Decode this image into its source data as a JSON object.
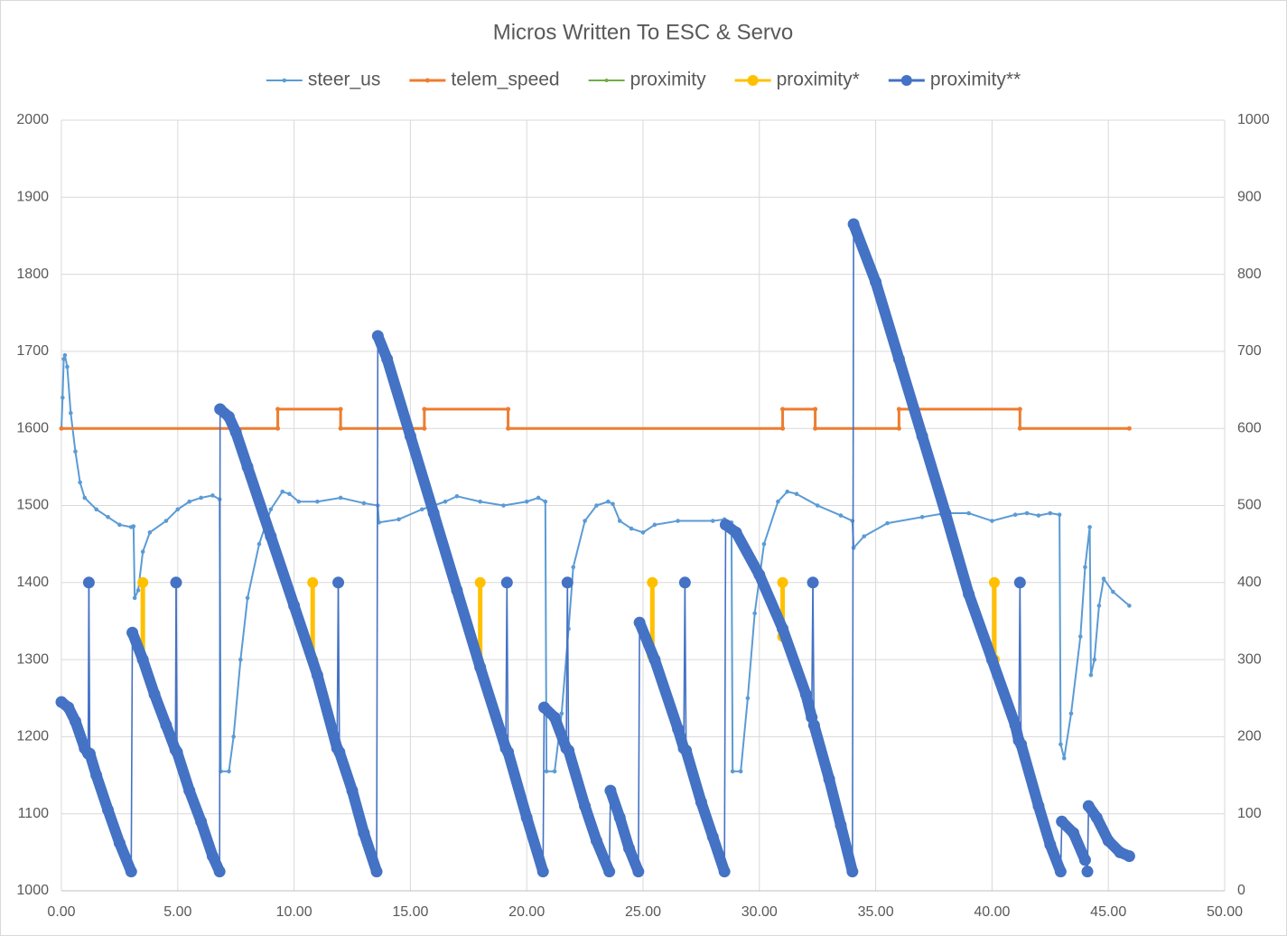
{
  "chart_data": {
    "type": "line",
    "title": "Micros Written To ESC & Servo",
    "xlim": [
      0,
      50
    ],
    "xticks": [
      {
        "value": 0,
        "label": "0.00"
      },
      {
        "value": 5,
        "label": "5.00"
      },
      {
        "value": 10,
        "label": "10.00"
      },
      {
        "value": 15,
        "label": "15.00"
      },
      {
        "value": 20,
        "label": "20.00"
      },
      {
        "value": 25,
        "label": "25.00"
      },
      {
        "value": 30,
        "label": "30.00"
      },
      {
        "value": 35,
        "label": "35.00"
      },
      {
        "value": 40,
        "label": "40.00"
      },
      {
        "value": 45,
        "label": "45.00"
      },
      {
        "value": 50,
        "label": "50.00"
      }
    ],
    "ylim": [
      1000,
      2000
    ],
    "yticks": [
      1000,
      1100,
      1200,
      1300,
      1400,
      1500,
      1600,
      1700,
      1800,
      1900,
      2000
    ],
    "y2lim": [
      0,
      1000
    ],
    "y2ticks": [
      0,
      100,
      200,
      300,
      400,
      500,
      600,
      700,
      800,
      900,
      1000
    ],
    "grid": true,
    "legend": "top",
    "series": [
      {
        "name": "steer_us",
        "color": "#5b9bd5",
        "x": [
          0,
          0.05,
          0.1,
          0.15,
          0.25,
          0.4,
          0.6,
          0.8,
          1.0,
          1.5,
          2.0,
          2.5,
          3.0,
          3.1,
          3.15,
          3.3,
          3.5,
          3.8,
          4.5,
          5.0,
          5.5,
          6.0,
          6.5,
          6.8,
          6.85,
          7.2,
          7.4,
          7.7,
          8.0,
          8.5,
          9.0,
          9.5,
          9.8,
          10.2,
          11.0,
          12.0,
          13.0,
          13.6,
          13.65,
          14.5,
          15.5,
          16.5,
          17.0,
          18.0,
          19.0,
          20.0,
          20.5,
          20.8,
          20.85,
          21.2,
          21.5,
          21.8,
          22.0,
          22.5,
          23.0,
          23.5,
          23.7,
          24.0,
          24.5,
          25.0,
          25.5,
          26.5,
          28.0,
          28.5,
          28.8,
          28.85,
          29.2,
          29.5,
          29.8,
          30.2,
          30.8,
          31.2,
          31.6,
          32.5,
          33.5,
          34.0,
          34.05,
          34.5,
          35.5,
          37.0,
          38.0,
          39.0,
          40.0,
          41.0,
          41.5,
          42.0,
          42.5,
          42.9,
          42.95,
          43.1,
          43.4,
          43.8,
          44.0,
          44.2,
          44.25,
          44.4,
          44.6,
          44.8,
          45.2,
          45.9
        ],
        "values": [
          1600,
          1640,
          1690,
          1695,
          1680,
          1620,
          1570,
          1530,
          1510,
          1495,
          1485,
          1475,
          1472,
          1473,
          1380,
          1390,
          1440,
          1465,
          1480,
          1495,
          1505,
          1510,
          1513,
          1508,
          1155,
          1155,
          1200,
          1300,
          1380,
          1450,
          1495,
          1518,
          1515,
          1505,
          1505,
          1510,
          1503,
          1500,
          1478,
          1482,
          1495,
          1505,
          1512,
          1505,
          1500,
          1505,
          1510,
          1505,
          1155,
          1155,
          1230,
          1340,
          1420,
          1480,
          1500,
          1505,
          1502,
          1480,
          1470,
          1465,
          1475,
          1480,
          1480,
          1482,
          1478,
          1155,
          1155,
          1250,
          1360,
          1450,
          1505,
          1518,
          1515,
          1500,
          1487,
          1480,
          1445,
          1460,
          1477,
          1485,
          1490,
          1490,
          1480,
          1488,
          1490,
          1487,
          1490,
          1488,
          1190,
          1172,
          1230,
          1330,
          1420,
          1472,
          1280,
          1300,
          1370,
          1405,
          1388,
          1370
        ]
      },
      {
        "name": "telem_speed",
        "color": "#ed7d31",
        "x": [
          0,
          9.3,
          9.3,
          12.0,
          12.0,
          15.6,
          15.6,
          19.2,
          19.2,
          31.0,
          31.0,
          32.4,
          32.4,
          36.0,
          36.0,
          41.2,
          41.2,
          45.9
        ],
        "values": [
          1600,
          1600,
          1625,
          1625,
          1600,
          1600,
          1625,
          1625,
          1600,
          1600,
          1625,
          1625,
          1600,
          1600,
          1625,
          1625,
          1600,
          1600
        ]
      },
      {
        "name": "proximity",
        "color": "#70ad47",
        "axis": "y2",
        "x": [
          0
        ],
        "values": [
          245
        ]
      },
      {
        "name": "proximity*",
        "color": "#ffc000",
        "axis": "y2",
        "x": [
          3.5,
          3.5,
          3.5,
          10.8,
          10.8,
          10.8,
          18.0,
          18.0,
          18.0,
          25.4,
          25.4,
          25.4,
          31.0,
          31.0,
          31.0,
          40.1,
          40.1
        ],
        "values": [
          300,
          400,
          null,
          300,
          400,
          null,
          290,
          400,
          null,
          305,
          400,
          null,
          330,
          400,
          null,
          300,
          400
        ]
      },
      {
        "name": "proximity**",
        "color": "#4472c4",
        "axis": "y2",
        "x": [
          0,
          0.3,
          0.6,
          1.0,
          1.15,
          1.18,
          1.22,
          1.5,
          2.0,
          2.5,
          3.0,
          3.05,
          3.5,
          4.0,
          4.5,
          4.9,
          4.93,
          4.97,
          5.5,
          6.0,
          6.5,
          6.8,
          6.82,
          7.2,
          7.5,
          8.0,
          9.0,
          10.0,
          11.0,
          11.85,
          11.9,
          11.95,
          12.5,
          13.0,
          13.55,
          13.6,
          14.0,
          15.0,
          16.0,
          17.0,
          18.0,
          19.1,
          19.15,
          19.2,
          20.0,
          20.7,
          20.75,
          21.2,
          21.7,
          21.75,
          21.8,
          22.5,
          23.0,
          23.55,
          23.6,
          24.0,
          24.4,
          24.8,
          24.85,
          25.5,
          26.5,
          26.75,
          26.8,
          26.85,
          27.5,
          28.0,
          28.5,
          28.55,
          29.0,
          30.0,
          31.0,
          32.0,
          32.25,
          32.3,
          32.35,
          33.0,
          33.5,
          34.0,
          34.05,
          35.0,
          36.0,
          37.0,
          38.0,
          39.0,
          40.0,
          41.0,
          41.15,
          41.2,
          41.25,
          42.0,
          42.5,
          42.95,
          43.0,
          43.5,
          44.0,
          44.1,
          44.15,
          44.5,
          45.0,
          45.5,
          45.9
        ],
        "values": [
          245,
          238,
          220,
          185,
          178,
          400,
          178,
          150,
          105,
          62,
          25,
          335,
          300,
          255,
          215,
          183,
          400,
          180,
          130,
          90,
          45,
          25,
          625,
          615,
          595,
          550,
          460,
          370,
          280,
          185,
          400,
          180,
          130,
          75,
          25,
          720,
          690,
          590,
          490,
          390,
          290,
          185,
          400,
          180,
          95,
          25,
          238,
          225,
          185,
          400,
          182,
          110,
          65,
          25,
          130,
          95,
          55,
          25,
          348,
          300,
          210,
          185,
          400,
          182,
          115,
          70,
          25,
          475,
          465,
          410,
          340,
          255,
          225,
          400,
          215,
          145,
          85,
          25,
          865,
          790,
          690,
          590,
          490,
          385,
          300,
          215,
          195,
          400,
          190,
          110,
          60,
          25,
          90,
          75,
          40,
          25,
          110,
          95,
          65,
          50,
          45
        ]
      }
    ]
  }
}
